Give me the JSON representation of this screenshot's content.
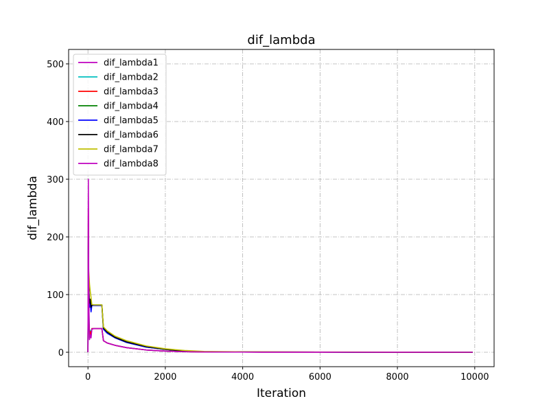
{
  "chart_data": {
    "type": "line",
    "title": "dif_lambda",
    "xlabel": "Iteration",
    "ylabel": "dif_lambda",
    "xlim": [
      -500,
      10500
    ],
    "ylim": [
      -25,
      525
    ],
    "xticks": [
      0,
      2000,
      4000,
      6000,
      8000,
      10000
    ],
    "yticks": [
      0,
      100,
      200,
      300,
      400,
      500
    ],
    "grid": true,
    "legend_position": "top-left",
    "series": [
      {
        "name": "dif_lambda1",
        "color": "#bf00bf",
        "x": [
          0,
          10,
          20,
          30,
          40,
          60,
          80,
          100,
          150,
          200,
          300,
          360,
          400,
          500,
          700,
          1000,
          1500,
          2000,
          2500,
          3000,
          4000,
          6000,
          8000,
          9950
        ],
        "y": [
          0,
          270,
          110,
          45,
          25,
          35,
          28,
          40,
          41,
          41,
          41,
          41,
          20,
          16,
          12,
          8,
          4,
          2,
          1,
          0.5,
          0.3,
          0.2,
          0.1,
          0
        ]
      },
      {
        "name": "dif_lambda2",
        "color": "#00bfbf",
        "x": [
          0,
          10,
          20,
          30,
          40,
          60,
          80,
          100,
          150,
          200,
          300,
          360,
          400,
          500,
          700,
          1000,
          1500,
          2000,
          2500,
          3000,
          4000,
          6000,
          8000,
          9950
        ],
        "y": [
          0,
          230,
          95,
          55,
          35,
          38,
          32,
          41,
          41,
          41,
          41,
          41,
          20,
          16,
          12,
          8,
          4,
          2,
          1,
          0.5,
          0.3,
          0.2,
          0.1,
          0
        ]
      },
      {
        "name": "dif_lambda3",
        "color": "#ff0000",
        "x": [
          0,
          10,
          20,
          30,
          40,
          60,
          80,
          100,
          150,
          200,
          300,
          360,
          400,
          500,
          700,
          1000,
          1500,
          2000,
          2500,
          3000,
          4000,
          6000,
          8000,
          9950
        ],
        "y": [
          0,
          250,
          100,
          50,
          30,
          36,
          30,
          41,
          41,
          41,
          41,
          41,
          20,
          16,
          12,
          8,
          4,
          2,
          1,
          0.5,
          0.3,
          0.2,
          0.1,
          0
        ]
      },
      {
        "name": "dif_lambda4",
        "color": "#008000",
        "x": [
          0,
          10,
          20,
          30,
          40,
          60,
          80,
          100,
          150,
          200,
          300,
          360,
          400,
          500,
          700,
          1000,
          1500,
          2000,
          2500,
          3000,
          4000,
          6000,
          8000,
          9950
        ],
        "y": [
          0,
          200,
          120,
          95,
          85,
          90,
          80,
          82,
          82,
          82,
          82,
          82,
          40,
          33,
          25,
          17,
          9,
          5,
          2,
          1,
          0.5,
          0.3,
          0.2,
          0
        ]
      },
      {
        "name": "dif_lambda5",
        "color": "#0000ff",
        "x": [
          0,
          10,
          20,
          30,
          40,
          60,
          80,
          100,
          150,
          200,
          300,
          360,
          400,
          500,
          700,
          1000,
          1500,
          2000,
          2500,
          3000,
          4000,
          6000,
          8000,
          9950
        ],
        "y": [
          0,
          180,
          110,
          90,
          78,
          85,
          70,
          81,
          81,
          81,
          81,
          81,
          40,
          33,
          25,
          17,
          9,
          5,
          2,
          1,
          0.5,
          0.3,
          0.2,
          0
        ]
      },
      {
        "name": "dif_lambda6",
        "color": "#000000",
        "x": [
          0,
          10,
          20,
          30,
          40,
          60,
          80,
          100,
          150,
          200,
          300,
          360,
          400,
          500,
          700,
          1000,
          1500,
          2000,
          2500,
          3000,
          4000,
          6000,
          8000,
          9950
        ],
        "y": [
          0,
          190,
          115,
          100,
          85,
          92,
          78,
          82,
          82,
          82,
          82,
          82,
          42,
          35,
          26,
          18,
          10,
          5,
          2,
          1,
          0.5,
          0.3,
          0.2,
          0
        ]
      },
      {
        "name": "dif_lambda7",
        "color": "#bfbf00",
        "x": [
          0,
          10,
          20,
          30,
          40,
          60,
          80,
          100,
          150,
          200,
          300,
          360,
          400,
          500,
          700,
          1000,
          1500,
          2000,
          2500,
          3000,
          4000,
          6000,
          8000,
          9950
        ],
        "y": [
          0,
          170,
          140,
          130,
          118,
          105,
          95,
          83,
          82,
          82,
          82,
          82,
          44,
          37,
          28,
          20,
          11,
          6,
          3,
          1.5,
          0.7,
          0.4,
          0.2,
          0
        ]
      },
      {
        "name": "dif_lambda8",
        "color": "#bf00bf",
        "x": [
          0,
          10,
          20,
          30,
          40,
          60,
          80,
          100,
          150,
          200,
          300,
          360,
          400,
          500,
          700,
          1000,
          1500,
          2000,
          2500,
          3000,
          4000,
          6000,
          8000,
          9950
        ],
        "y": [
          0,
          300,
          120,
          50,
          22,
          30,
          25,
          40,
          41,
          41,
          41,
          41,
          20,
          16,
          12,
          8,
          4,
          2,
          1,
          0.5,
          0.3,
          0.2,
          0.1,
          0
        ]
      }
    ]
  }
}
